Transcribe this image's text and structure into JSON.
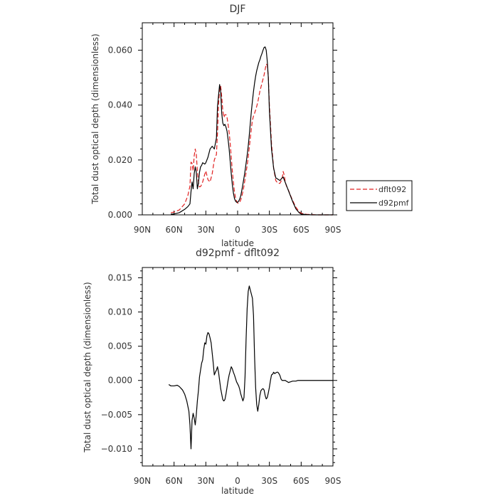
{
  "chart_data": [
    {
      "type": "line",
      "title": "DJF",
      "xlabel": "latitude",
      "ylabel": "Total dust optical depth (dimensionless)",
      "xlim": [
        90,
        -90
      ],
      "ylim": [
        0,
        0.07
      ],
      "xtick_values": [
        90,
        60,
        30,
        0,
        -30,
        -60,
        -90
      ],
      "xtick_labels": [
        "90N",
        "60N",
        "30N",
        "0",
        "30S",
        "60S",
        "90S"
      ],
      "ytick_values": [
        0,
        0.02,
        0.04,
        0.06
      ],
      "ytick_labels": [
        "0.000",
        "0.020",
        "0.040",
        "0.060"
      ],
      "legend_position": "right",
      "grid": false,
      "series": [
        {
          "name": "dflt092",
          "color": "#e02020",
          "dash": "dashed",
          "x": [
            63,
            60,
            55,
            50,
            47,
            45,
            44,
            43,
            42,
            41,
            40,
            39,
            38,
            37,
            36,
            35,
            34,
            33,
            31,
            30,
            28,
            26,
            24,
            22,
            20,
            19,
            18,
            17,
            16,
            15,
            14,
            13,
            12,
            11,
            10,
            9,
            8,
            7,
            6,
            5,
            4,
            3,
            2,
            1,
            0,
            -1,
            -2,
            -3,
            -4,
            -5,
            -6,
            -7,
            -8,
            -9,
            -10,
            -11,
            -12,
            -13,
            -14,
            -15,
            -16,
            -17,
            -18,
            -19,
            -20,
            -21,
            -22,
            -23,
            -24,
            -25,
            -26,
            -27,
            -28,
            -29,
            -30,
            -32,
            -34,
            -36,
            -38,
            -40,
            -42,
            -43,
            -44,
            -45,
            -46,
            -48,
            -50,
            -52,
            -55,
            -58,
            -60,
            -65,
            -70,
            -75,
            -80,
            -85,
            -90
          ],
          "y": [
            0.0008,
            0.001,
            0.0018,
            0.004,
            0.007,
            0.0105,
            0.0192,
            0.0188,
            0.016,
            0.0215,
            0.024,
            0.022,
            0.016,
            0.012,
            0.0102,
            0.0103,
            0.011,
            0.012,
            0.0148,
            0.016,
            0.0128,
            0.012,
            0.015,
            0.02,
            0.022,
            0.03,
            0.04,
            0.046,
            0.047,
            0.043,
            0.038,
            0.0355,
            0.0365,
            0.0365,
            0.0355,
            0.033,
            0.03,
            0.026,
            0.021,
            0.016,
            0.012,
            0.0085,
            0.0062,
            0.005,
            0.0043,
            0.0042,
            0.0046,
            0.0055,
            0.0068,
            0.0085,
            0.0105,
            0.013,
            0.0155,
            0.018,
            0.021,
            0.0245,
            0.028,
            0.0315,
            0.0345,
            0.036,
            0.037,
            0.0382,
            0.0395,
            0.041,
            0.043,
            0.045,
            0.0465,
            0.048,
            0.0495,
            0.051,
            0.053,
            0.055,
            0.0545,
            0.05,
            0.04,
            0.026,
            0.017,
            0.0125,
            0.0115,
            0.0115,
            0.013,
            0.0158,
            0.0145,
            0.012,
            0.0106,
            0.009,
            0.007,
            0.0052,
            0.0028,
            0.0012,
            0.0006,
            0.0002,
            0.0001,
            0.0,
            0.0,
            0.0,
            0.0
          ]
        },
        {
          "name": "d92pmf",
          "color": "#000000",
          "dash": "solid",
          "x": [
            63,
            60,
            55,
            50,
            47,
            45,
            44,
            43,
            42,
            41,
            40,
            39,
            38,
            37,
            36,
            35,
            34,
            33,
            31,
            30,
            28,
            26,
            24,
            22,
            20,
            19,
            18,
            17,
            16,
            15,
            14,
            13,
            12,
            11,
            10,
            9,
            8,
            7,
            6,
            5,
            4,
            3,
            2,
            1,
            0,
            -1,
            -2,
            -3,
            -4,
            -5,
            -6,
            -7,
            -8,
            -9,
            -10,
            -11,
            -12,
            -13,
            -14,
            -15,
            -16,
            -17,
            -18,
            -19,
            -20,
            -21,
            -22,
            -23,
            -24,
            -25,
            -26,
            -27,
            -28,
            -29,
            -30,
            -32,
            -34,
            -36,
            -38,
            -40,
            -42,
            -43,
            -44,
            -45,
            -46,
            -48,
            -50,
            -52,
            -55,
            -58,
            -60,
            -65,
            -70,
            -75,
            -80,
            -85,
            -90
          ],
          "y": [
            0.0003,
            0.0003,
            0.0008,
            0.002,
            0.003,
            0.004,
            0.0085,
            0.012,
            0.0095,
            0.015,
            0.0175,
            0.0155,
            0.0095,
            0.0115,
            0.0155,
            0.0175,
            0.018,
            0.019,
            0.0185,
            0.019,
            0.021,
            0.024,
            0.025,
            0.024,
            0.028,
            0.0395,
            0.0435,
            0.0475,
            0.045,
            0.037,
            0.0335,
            0.0325,
            0.033,
            0.032,
            0.0305,
            0.0275,
            0.024,
            0.0195,
            0.015,
            0.011,
            0.008,
            0.006,
            0.005,
            0.0046,
            0.0046,
            0.005,
            0.0058,
            0.007,
            0.009,
            0.0112,
            0.0135,
            0.016,
            0.0188,
            0.0217,
            0.025,
            0.029,
            0.0335,
            0.0378,
            0.0415,
            0.045,
            0.048,
            0.0505,
            0.0525,
            0.054,
            0.0555,
            0.0565,
            0.0578,
            0.0588,
            0.06,
            0.061,
            0.0612,
            0.06,
            0.056,
            0.05,
            0.038,
            0.024,
            0.017,
            0.0135,
            0.013,
            0.0125,
            0.0135,
            0.0138,
            0.0128,
            0.0118,
            0.0108,
            0.0088,
            0.0068,
            0.0048,
            0.0022,
            0.0008,
            0.0003,
            0.0001,
            0.0,
            0.0,
            0.0,
            0.0,
            0.0
          ]
        }
      ]
    },
    {
      "type": "line",
      "title": "d92pmf - dflt092",
      "xlabel": "latitude",
      "ylabel": "Total dust optical depth (dimensionless)",
      "xlim": [
        90,
        -90
      ],
      "ylim": [
        -0.0125,
        0.0165
      ],
      "xtick_values": [
        90,
        60,
        30,
        0,
        -30,
        -60,
        -90
      ],
      "xtick_labels": [
        "90N",
        "60N",
        "30N",
        "0",
        "30S",
        "60S",
        "90S"
      ],
      "ytick_values": [
        -0.01,
        -0.005,
        0,
        0.005,
        0.01,
        0.015
      ],
      "ytick_labels": [
        "−0.010",
        "−0.005",
        "0.000",
        "0.005",
        "0.010",
        "0.015"
      ],
      "grid": false,
      "series": [
        {
          "color": "#000000",
          "dash": "solid",
          "x": [
            65,
            63,
            60,
            57,
            55,
            52,
            50,
            48,
            46,
            45,
            44,
            43,
            42,
            41,
            40,
            39,
            38,
            37,
            36,
            35,
            34,
            33,
            32,
            31,
            30,
            29,
            28,
            27,
            26,
            25,
            24,
            23,
            22,
            21,
            20,
            19,
            18,
            17,
            16,
            15,
            14,
            13,
            12,
            11,
            10,
            9,
            8,
            7,
            6,
            5,
            4,
            3,
            2,
            1,
            0,
            -1,
            -2,
            -3,
            -4,
            -5,
            -6,
            -7,
            -8,
            -9,
            -10,
            -11,
            -12,
            -13,
            -14,
            -15,
            -16,
            -17,
            -18,
            -19,
            -20,
            -21,
            -22,
            -23,
            -24,
            -25,
            -26,
            -27,
            -28,
            -29,
            -30,
            -31,
            -32,
            -33,
            -34,
            -35,
            -36,
            -37,
            -38,
            -39,
            -40,
            -41,
            -42,
            -43,
            -44,
            -45,
            -46,
            -47,
            -48,
            -50,
            -52,
            -55,
            -57,
            -59,
            -60,
            -62,
            -65,
            -70,
            -80,
            -90
          ],
          "y": [
            -0.0006,
            -0.0008,
            -0.0008,
            -0.0007,
            -0.0009,
            -0.0014,
            -0.002,
            -0.003,
            -0.0045,
            -0.0065,
            -0.01,
            -0.0058,
            -0.0048,
            -0.0055,
            -0.0065,
            -0.005,
            -0.003,
            -0.0015,
            0.0005,
            0.0015,
            0.0025,
            0.003,
            0.0045,
            0.0055,
            0.0053,
            0.0065,
            0.007,
            0.0068,
            0.0062,
            0.0055,
            0.004,
            0.0025,
            0.0008,
            0.0012,
            0.0015,
            0.002,
            0.0012,
            0.0,
            -0.0012,
            -0.002,
            -0.0028,
            -0.003,
            -0.0028,
            -0.002,
            -0.001,
            0.0,
            0.0008,
            0.0014,
            0.002,
            0.0017,
            0.0012,
            0.0008,
            0.0003,
            -0.0002,
            -0.0005,
            -0.0008,
            -0.0013,
            -0.002,
            -0.0025,
            -0.003,
            -0.0025,
            0.0005,
            0.006,
            0.0105,
            0.013,
            0.0138,
            0.0132,
            0.0126,
            0.012,
            0.0095,
            0.0035,
            -0.001,
            -0.0035,
            -0.0045,
            -0.0035,
            -0.0022,
            -0.0015,
            -0.0013,
            -0.0012,
            -0.0014,
            -0.0022,
            -0.0027,
            -0.0025,
            -0.0018,
            -0.001,
            0.0,
            0.0008,
            0.0009,
            0.0012,
            0.001,
            0.0011,
            0.0012,
            0.0012,
            0.001,
            0.0007,
            0.0002,
            0.0,
            0.0,
            0.0,
            0.0,
            -0.0001,
            -0.0002,
            -0.0003,
            -0.0002,
            -0.0001,
            -0.0001,
            0.0,
            0.0,
            0.0,
            0.0,
            0.0,
            0.0,
            0.0,
            0.0
          ]
        }
      ]
    }
  ]
}
